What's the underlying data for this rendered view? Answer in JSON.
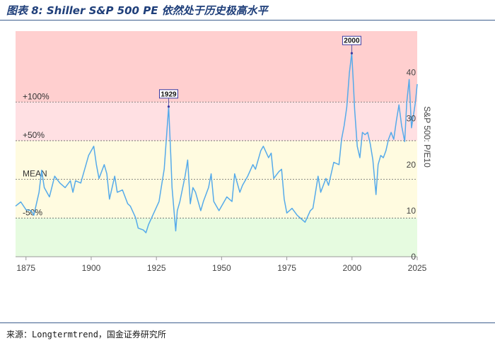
{
  "figure_title": "图表 8: Shiller S&P 500 PE 依然处于历史极高水平",
  "source": "来源：Longtermtrend，国金证券研究所",
  "colors": {
    "band_very_high": "#ffcfcf",
    "band_high": "#ffe0e3",
    "band_mid": "#fffbe0",
    "band_low": "#e6fbe0",
    "line": "#55aaea",
    "rule": "#3e5f8f"
  },
  "chart_data": {
    "type": "line",
    "title": "",
    "xlabel": "",
    "ylabel": "S&P 500: P/E10",
    "xlim": [
      1871,
      2025
    ],
    "ylim": [
      0,
      49
    ],
    "x_ticks": [
      1875,
      1900,
      1925,
      1950,
      1975,
      2000,
      2025
    ],
    "y_ticks": [
      0,
      10,
      20,
      30,
      40
    ],
    "y_axis_side": "right",
    "grid": false,
    "bands": [
      {
        "from": 33.6,
        "to": 49,
        "color_key": "band_very_high"
      },
      {
        "from": 25.2,
        "to": 33.6,
        "color_key": "band_high"
      },
      {
        "from": 8.4,
        "to": 25.2,
        "color_key": "band_mid"
      },
      {
        "from": 0,
        "to": 8.4,
        "color_key": "band_low"
      }
    ],
    "reference_lines": [
      {
        "label": "+100%",
        "value": 33.6
      },
      {
        "label": "+50%",
        "value": 25.2
      },
      {
        "label": "MEAN",
        "value": 16.8
      },
      {
        "label": "-50%",
        "value": 8.4
      }
    ],
    "annotations": [
      {
        "label": "1929",
        "x": 1929.7,
        "y": 32.6
      },
      {
        "label": "2000",
        "x": 1999.9,
        "y": 44.2
      }
    ],
    "series": [
      {
        "x": [
          1871,
          1873,
          1875,
          1877,
          1878,
          1880,
          1881,
          1882,
          1884,
          1886,
          1888,
          1890,
          1892,
          1893,
          1894,
          1896,
          1898,
          1899,
          1901,
          1902,
          1903,
          1905,
          1906,
          1907,
          1909,
          1910,
          1912,
          1914,
          1915,
          1917,
          1918,
          1920,
          1921,
          1922,
          1924,
          1926,
          1927,
          1928,
          1929.7,
          1930.5,
          1931,
          1932.4,
          1933,
          1934,
          1936,
          1937,
          1938,
          1939,
          1940,
          1942,
          1943,
          1945,
          1946,
          1947,
          1949,
          1950,
          1952,
          1954,
          1955,
          1957,
          1958,
          1960,
          1962,
          1963,
          1965,
          1966,
          1968,
          1969,
          1970,
          1972,
          1973,
          1974,
          1975,
          1977,
          1979,
          1980,
          1981,
          1982,
          1984,
          1985,
          1986,
          1987,
          1988,
          1990,
          1991,
          1993,
          1995,
          1996,
          1997,
          1998,
          1999,
          1999.9,
          2000.5,
          2001,
          2002,
          2003,
          2004,
          2005,
          2006,
          2007,
          2008,
          2009.2,
          2010,
          2011,
          2012,
          2013,
          2014,
          2015,
          2016,
          2017,
          2018,
          2019,
          2020.2,
          2021,
          2021.9,
          2022.8,
          2023.5,
          2024.3,
          2025
        ],
        "values": [
          11.0,
          11.9,
          10.2,
          10.0,
          9.0,
          14.0,
          18.8,
          15.0,
          13.0,
          17.5,
          16.0,
          15.0,
          16.5,
          14.0,
          16.5,
          16.0,
          20.0,
          22.0,
          24.0,
          20.0,
          17.0,
          20.0,
          18.0,
          12.5,
          17.5,
          14.0,
          14.5,
          11.5,
          11.0,
          8.5,
          6.2,
          5.8,
          5.2,
          7.0,
          9.5,
          12.0,
          15.5,
          19.0,
          32.6,
          22.0,
          15.0,
          5.6,
          10.0,
          12.0,
          17.5,
          21.0,
          11.5,
          15.0,
          14.0,
          10.0,
          12.0,
          15.0,
          18.0,
          12.0,
          10.0,
          11.0,
          13.0,
          12.0,
          18.0,
          14.0,
          15.5,
          17.5,
          20.0,
          19.0,
          23.0,
          24.0,
          21.5,
          22.5,
          17.0,
          18.5,
          19.0,
          12.5,
          9.5,
          10.5,
          9.0,
          8.5,
          8.0,
          7.5,
          10.0,
          10.5,
          14.0,
          17.5,
          14.0,
          17.0,
          15.5,
          20.5,
          20.0,
          25.5,
          28.5,
          32.5,
          40.0,
          44.2,
          38.0,
          32.0,
          24.0,
          21.5,
          27.0,
          26.5,
          27.0,
          24.5,
          21.0,
          13.5,
          20.0,
          22.0,
          21.5,
          23.0,
          25.5,
          27.0,
          25.5,
          29.5,
          33.0,
          28.5,
          25.0,
          33.5,
          38.5,
          28.0,
          30.5,
          33.5,
          37.5
        ]
      }
    ]
  }
}
